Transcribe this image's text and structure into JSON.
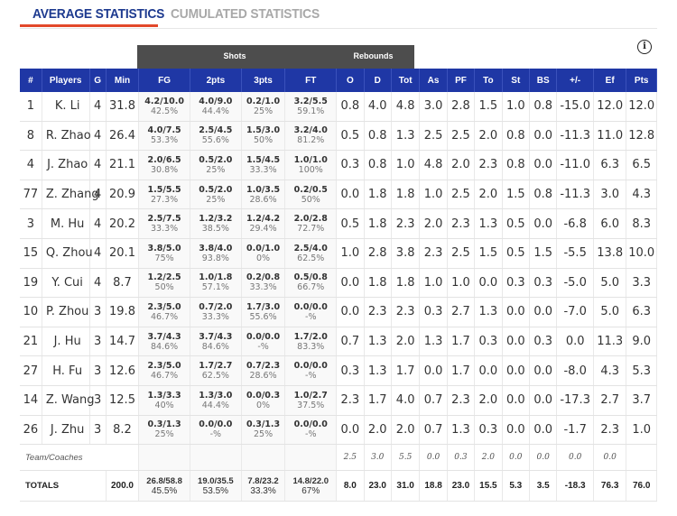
{
  "tabs": {
    "active": "AVERAGE STATISTICS",
    "inactive": "CUMULATED STATISTICS"
  },
  "groups": {
    "shots": "Shots",
    "rebounds": "Rebounds"
  },
  "columns": [
    "#",
    "Players",
    "G",
    "Min",
    "FG",
    "2pts",
    "3pts",
    "FT",
    "O",
    "D",
    "Tot",
    "As",
    "PF",
    "To",
    "St",
    "BS",
    "+/-",
    "Ef",
    "Pts"
  ],
  "players": [
    {
      "num": "1",
      "name": "K. Li",
      "g": "4",
      "min": "31.8",
      "fg": [
        "4.2/10.0",
        "42.5%"
      ],
      "p2": [
        "4.0/9.0",
        "44.4%"
      ],
      "p3": [
        "0.2/1.0",
        "25%"
      ],
      "ft": [
        "3.2/5.5",
        "59.1%"
      ],
      "o": "0.8",
      "d": "4.0",
      "tot": "4.8",
      "as": "3.0",
      "pf": "2.8",
      "to": "1.5",
      "st": "1.0",
      "bs": "0.8",
      "pm": "-15.0",
      "ef": "12.0",
      "pts": "12.0"
    },
    {
      "num": "8",
      "name": "R. Zhao",
      "g": "4",
      "min": "26.4",
      "fg": [
        "4.0/7.5",
        "53.3%"
      ],
      "p2": [
        "2.5/4.5",
        "55.6%"
      ],
      "p3": [
        "1.5/3.0",
        "50%"
      ],
      "ft": [
        "3.2/4.0",
        "81.2%"
      ],
      "o": "0.5",
      "d": "0.8",
      "tot": "1.3",
      "as": "2.5",
      "pf": "2.5",
      "to": "2.0",
      "st": "0.8",
      "bs": "0.0",
      "pm": "-11.3",
      "ef": "11.0",
      "pts": "12.8"
    },
    {
      "num": "4",
      "name": "J. Zhao",
      "g": "4",
      "min": "21.1",
      "fg": [
        "2.0/6.5",
        "30.8%"
      ],
      "p2": [
        "0.5/2.0",
        "25%"
      ],
      "p3": [
        "1.5/4.5",
        "33.3%"
      ],
      "ft": [
        "1.0/1.0",
        "100%"
      ],
      "o": "0.3",
      "d": "0.8",
      "tot": "1.0",
      "as": "4.8",
      "pf": "2.0",
      "to": "2.3",
      "st": "0.8",
      "bs": "0.0",
      "pm": "-11.0",
      "ef": "6.3",
      "pts": "6.5"
    },
    {
      "num": "77",
      "name": "Z. Zhang",
      "g": "4",
      "min": "20.9",
      "fg": [
        "1.5/5.5",
        "27.3%"
      ],
      "p2": [
        "0.5/2.0",
        "25%"
      ],
      "p3": [
        "1.0/3.5",
        "28.6%"
      ],
      "ft": [
        "0.2/0.5",
        "50%"
      ],
      "o": "0.0",
      "d": "1.8",
      "tot": "1.8",
      "as": "1.0",
      "pf": "2.5",
      "to": "2.0",
      "st": "1.5",
      "bs": "0.8",
      "pm": "-11.3",
      "ef": "3.0",
      "pts": "4.3"
    },
    {
      "num": "3",
      "name": "M. Hu",
      "g": "4",
      "min": "20.2",
      "fg": [
        "2.5/7.5",
        "33.3%"
      ],
      "p2": [
        "1.2/3.2",
        "38.5%"
      ],
      "p3": [
        "1.2/4.2",
        "29.4%"
      ],
      "ft": [
        "2.0/2.8",
        "72.7%"
      ],
      "o": "0.5",
      "d": "1.8",
      "tot": "2.3",
      "as": "2.0",
      "pf": "2.3",
      "to": "1.3",
      "st": "0.5",
      "bs": "0.0",
      "pm": "-6.8",
      "ef": "6.0",
      "pts": "8.3"
    },
    {
      "num": "15",
      "name": "Q. Zhou",
      "g": "4",
      "min": "20.1",
      "fg": [
        "3.8/5.0",
        "75%"
      ],
      "p2": [
        "3.8/4.0",
        "93.8%"
      ],
      "p3": [
        "0.0/1.0",
        "0%"
      ],
      "ft": [
        "2.5/4.0",
        "62.5%"
      ],
      "o": "1.0",
      "d": "2.8",
      "tot": "3.8",
      "as": "2.3",
      "pf": "2.5",
      "to": "1.5",
      "st": "0.5",
      "bs": "1.5",
      "pm": "-5.5",
      "ef": "13.8",
      "pts": "10.0"
    },
    {
      "num": "19",
      "name": "Y. Cui",
      "g": "4",
      "min": "8.7",
      "fg": [
        "1.2/2.5",
        "50%"
      ],
      "p2": [
        "1.0/1.8",
        "57.1%"
      ],
      "p3": [
        "0.2/0.8",
        "33.3%"
      ],
      "ft": [
        "0.5/0.8",
        "66.7%"
      ],
      "o": "0.0",
      "d": "1.8",
      "tot": "1.8",
      "as": "1.0",
      "pf": "1.0",
      "to": "0.0",
      "st": "0.3",
      "bs": "0.3",
      "pm": "-5.0",
      "ef": "5.0",
      "pts": "3.3"
    },
    {
      "num": "10",
      "name": "P. Zhou",
      "g": "3",
      "min": "19.8",
      "fg": [
        "2.3/5.0",
        "46.7%"
      ],
      "p2": [
        "0.7/2.0",
        "33.3%"
      ],
      "p3": [
        "1.7/3.0",
        "55.6%"
      ],
      "ft": [
        "0.0/0.0",
        "-%"
      ],
      "o": "0.0",
      "d": "2.3",
      "tot": "2.3",
      "as": "0.3",
      "pf": "2.7",
      "to": "1.3",
      "st": "0.0",
      "bs": "0.0",
      "pm": "-7.0",
      "ef": "5.0",
      "pts": "6.3"
    },
    {
      "num": "21",
      "name": "J. Hu",
      "g": "3",
      "min": "14.7",
      "fg": [
        "3.7/4.3",
        "84.6%"
      ],
      "p2": [
        "3.7/4.3",
        "84.6%"
      ],
      "p3": [
        "0.0/0.0",
        "-%"
      ],
      "ft": [
        "1.7/2.0",
        "83.3%"
      ],
      "o": "0.7",
      "d": "1.3",
      "tot": "2.0",
      "as": "1.3",
      "pf": "1.7",
      "to": "0.3",
      "st": "0.0",
      "bs": "0.3",
      "pm": "0.0",
      "ef": "11.3",
      "pts": "9.0"
    },
    {
      "num": "27",
      "name": "H. Fu",
      "g": "3",
      "min": "12.6",
      "fg": [
        "2.3/5.0",
        "46.7%"
      ],
      "p2": [
        "1.7/2.7",
        "62.5%"
      ],
      "p3": [
        "0.7/2.3",
        "28.6%"
      ],
      "ft": [
        "0.0/0.0",
        "-%"
      ],
      "o": "0.3",
      "d": "1.3",
      "tot": "1.7",
      "as": "0.0",
      "pf": "1.7",
      "to": "0.0",
      "st": "0.0",
      "bs": "0.0",
      "pm": "-8.0",
      "ef": "4.3",
      "pts": "5.3"
    },
    {
      "num": "14",
      "name": "Z. Wang",
      "g": "3",
      "min": "12.5",
      "fg": [
        "1.3/3.3",
        "40%"
      ],
      "p2": [
        "1.3/3.0",
        "44.4%"
      ],
      "p3": [
        "0.0/0.3",
        "0%"
      ],
      "ft": [
        "1.0/2.7",
        "37.5%"
      ],
      "o": "2.3",
      "d": "1.7",
      "tot": "4.0",
      "as": "0.7",
      "pf": "2.3",
      "to": "2.0",
      "st": "0.0",
      "bs": "0.0",
      "pm": "-17.3",
      "ef": "2.7",
      "pts": "3.7"
    },
    {
      "num": "26",
      "name": "J. Zhu",
      "g": "3",
      "min": "8.2",
      "fg": [
        "0.3/1.3",
        "25%"
      ],
      "p2": [
        "0.0/0.0",
        "-%"
      ],
      "p3": [
        "0.3/1.3",
        "25%"
      ],
      "ft": [
        "0.0/0.0",
        "-%"
      ],
      "o": "0.0",
      "d": "2.0",
      "tot": "2.0",
      "as": "0.7",
      "pf": "1.3",
      "to": "0.3",
      "st": "0.0",
      "bs": "0.0",
      "pm": "-1.7",
      "ef": "2.3",
      "pts": "1.0"
    }
  ],
  "team": {
    "label": "Team/Coaches",
    "o": "2.5",
    "d": "3.0",
    "tot": "5.5",
    "as": "0.0",
    "pf": "0.3",
    "to": "2.0",
    "st": "0.0",
    "bs": "0.0",
    "pm": "0.0",
    "ef": "0.0"
  },
  "totals": {
    "label": "TOTALS",
    "min": "200.0",
    "fg": [
      "26.8/58.8",
      "45.5%"
    ],
    "p2": [
      "19.0/35.5",
      "53.5%"
    ],
    "p3": [
      "7.8/23.2",
      "33.3%"
    ],
    "ft": [
      "14.8/22.0",
      "67%"
    ],
    "o": "8.0",
    "d": "23.0",
    "tot": "31.0",
    "as": "18.8",
    "pf": "23.0",
    "to": "15.5",
    "st": "5.3",
    "bs": "3.5",
    "pm": "-18.3",
    "ef": "76.3",
    "pts": "76.0"
  },
  "icons": {
    "info": "info-icon"
  },
  "colors": {
    "header_blue": "#1f37a5",
    "group_gray": "#4d4d4d",
    "tab_active": "#1d3a8f",
    "tab_underline": "#e2482a"
  }
}
